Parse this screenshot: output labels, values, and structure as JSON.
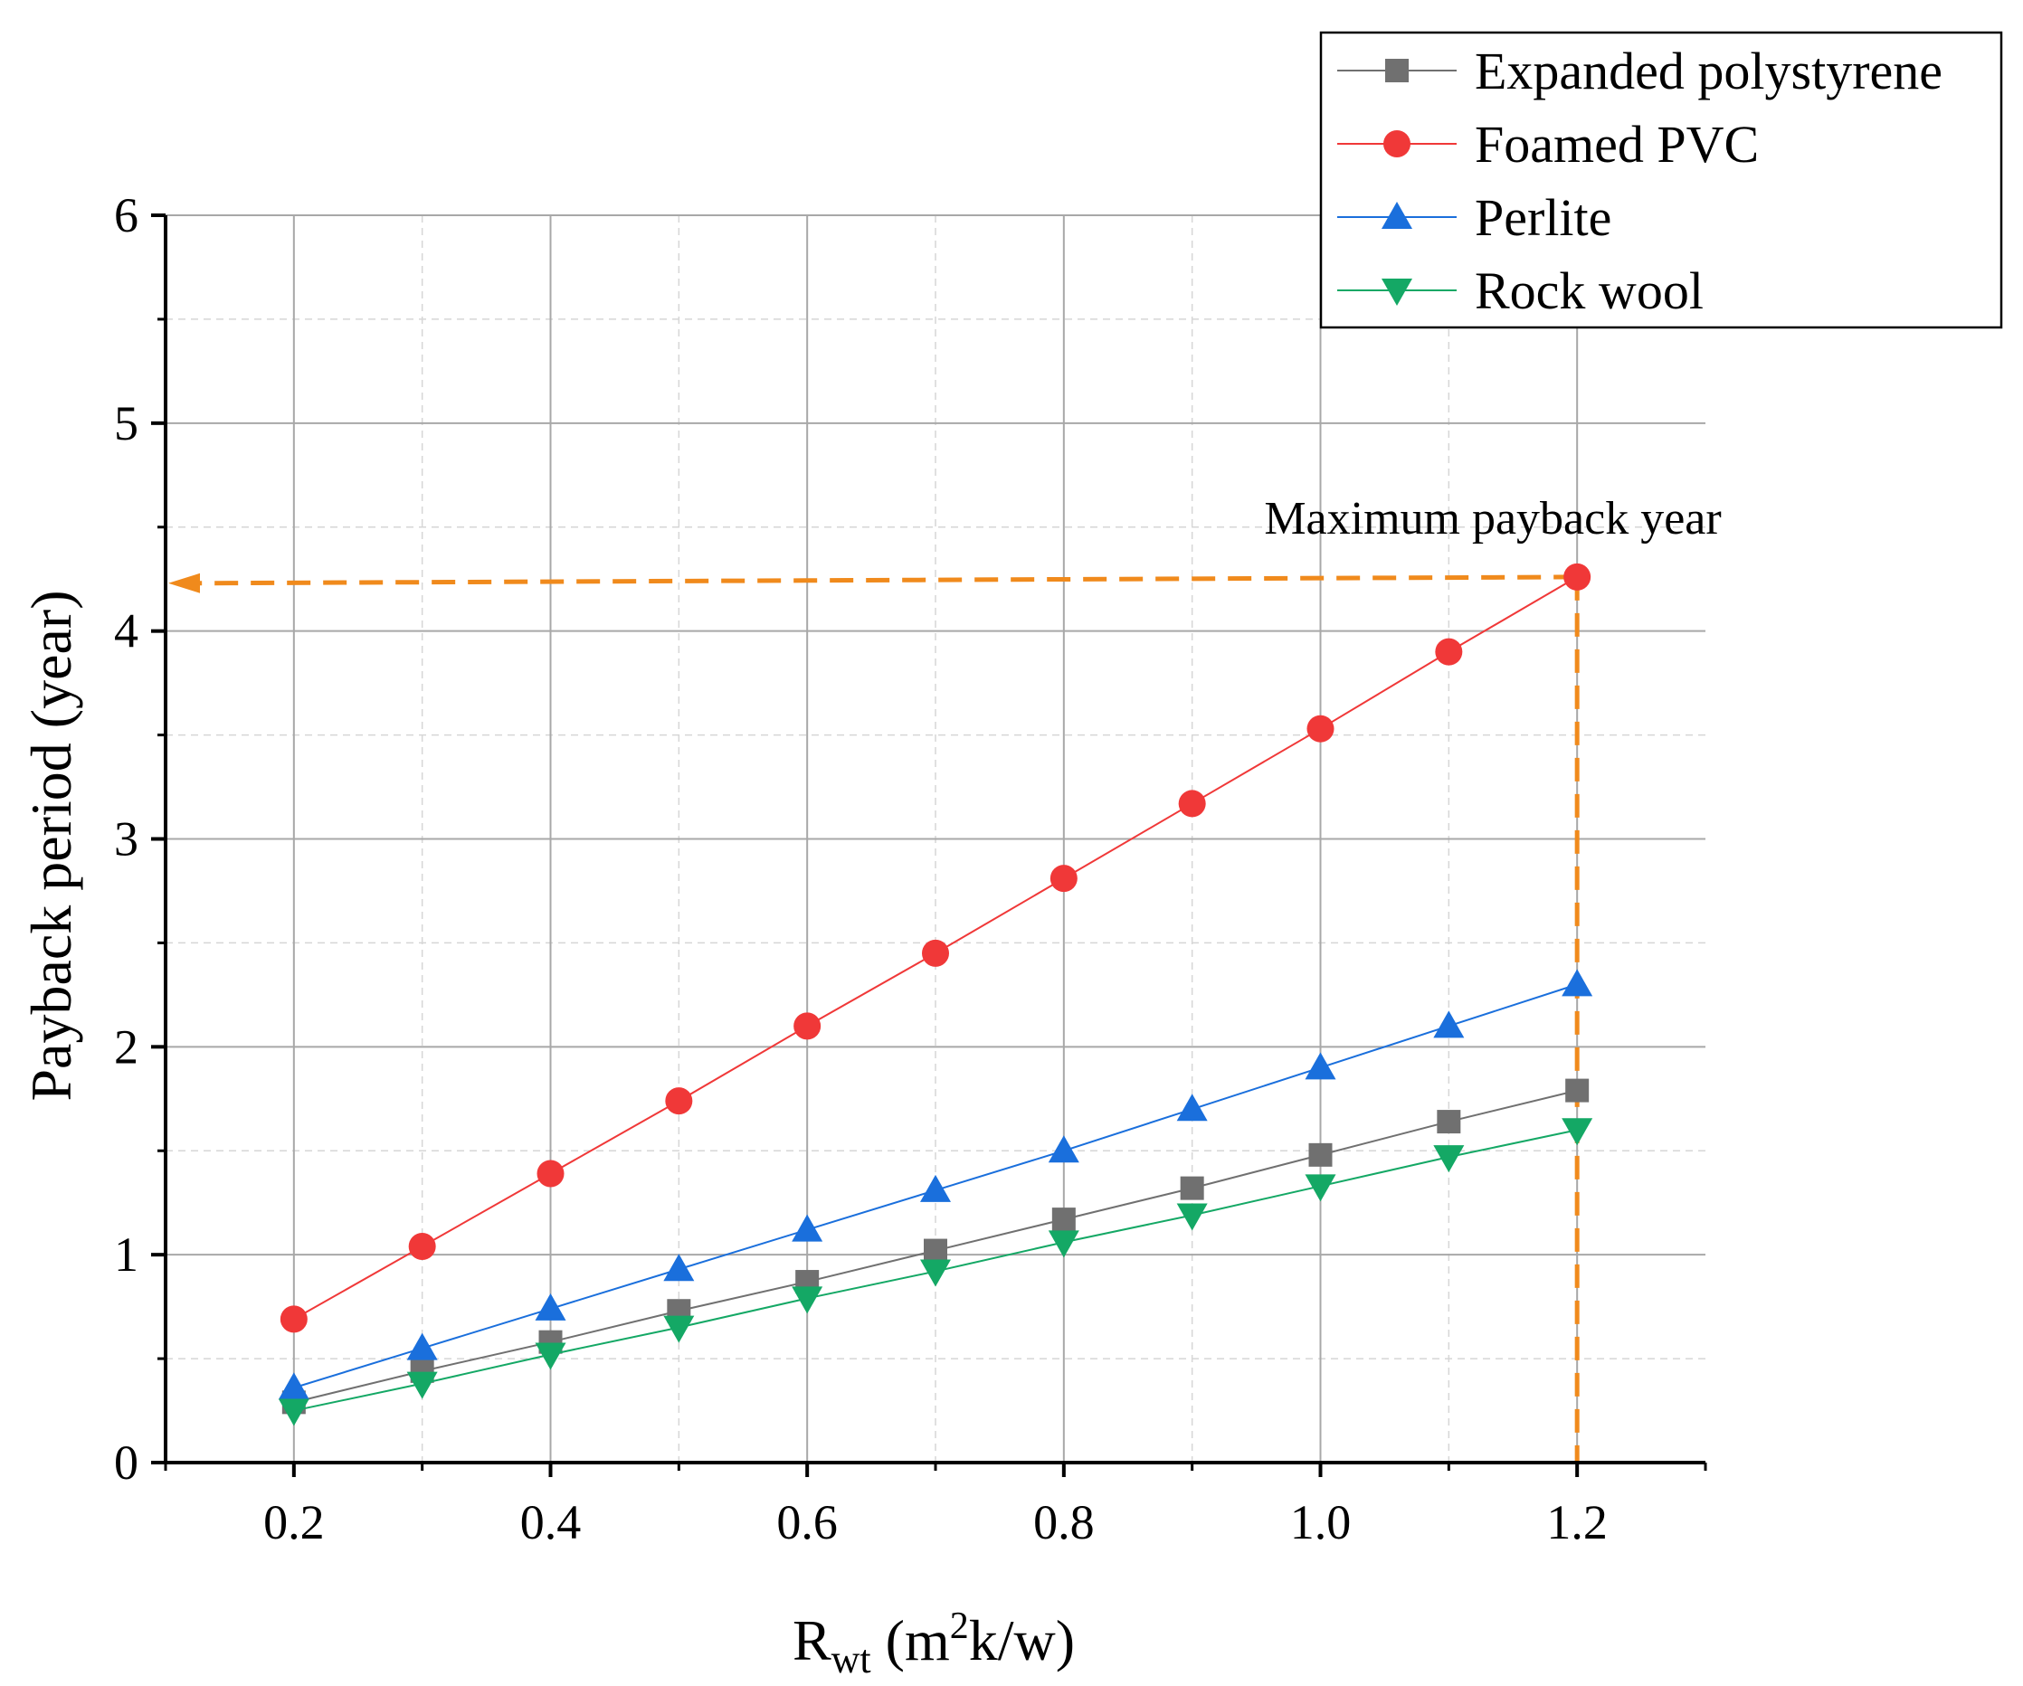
{
  "chart_data": {
    "type": "line",
    "title": "",
    "xlabel": "R",
    "xlabel_sub": "wt",
    "xlabel_unit_pre": " (m",
    "xlabel_unit_sup": "2",
    "xlabel_unit_post": "k/w)",
    "ylabel": "Payback period (year)",
    "xlim": [
      0.1,
      1.3
    ],
    "ylim": [
      0,
      6
    ],
    "grid": true,
    "legend_position": "top-right",
    "x": [
      0.2,
      0.3,
      0.4,
      0.5,
      0.6,
      0.7,
      0.8,
      0.9,
      1.0,
      1.1,
      1.2
    ],
    "x_ticks": [
      "0.2",
      "0.4",
      "0.6",
      "0.8",
      "1.0",
      "1.2"
    ],
    "y_ticks": [
      "0",
      "1",
      "2",
      "3",
      "4",
      "5",
      "6"
    ],
    "series": [
      {
        "name": "Expanded polystyrene",
        "color": "#707070",
        "marker": "square",
        "values": [
          0.29,
          0.44,
          0.58,
          0.73,
          0.87,
          1.02,
          1.17,
          1.32,
          1.48,
          1.64,
          1.79
        ]
      },
      {
        "name": "Foamed PVC",
        "color": "#f03838",
        "marker": "circle",
        "values": [
          0.69,
          1.04,
          1.39,
          1.74,
          2.1,
          2.45,
          2.81,
          3.17,
          3.53,
          3.9,
          4.26
        ]
      },
      {
        "name": "Perlite",
        "color": "#1a6fdc",
        "marker": "triangle-up",
        "values": [
          0.36,
          0.55,
          0.74,
          0.93,
          1.12,
          1.31,
          1.5,
          1.7,
          1.9,
          2.1,
          2.3
        ]
      },
      {
        "name": "Rock wool",
        "color": "#14a865",
        "marker": "triangle-down",
        "values": [
          0.25,
          0.38,
          0.52,
          0.65,
          0.79,
          0.92,
          1.06,
          1.19,
          1.33,
          1.47,
          1.6
        ]
      }
    ],
    "annotation": {
      "text": "Maximum payback year",
      "x": 1.2,
      "y": 4.26,
      "arrow_y": 4.23,
      "color": "#f08a1c"
    }
  }
}
